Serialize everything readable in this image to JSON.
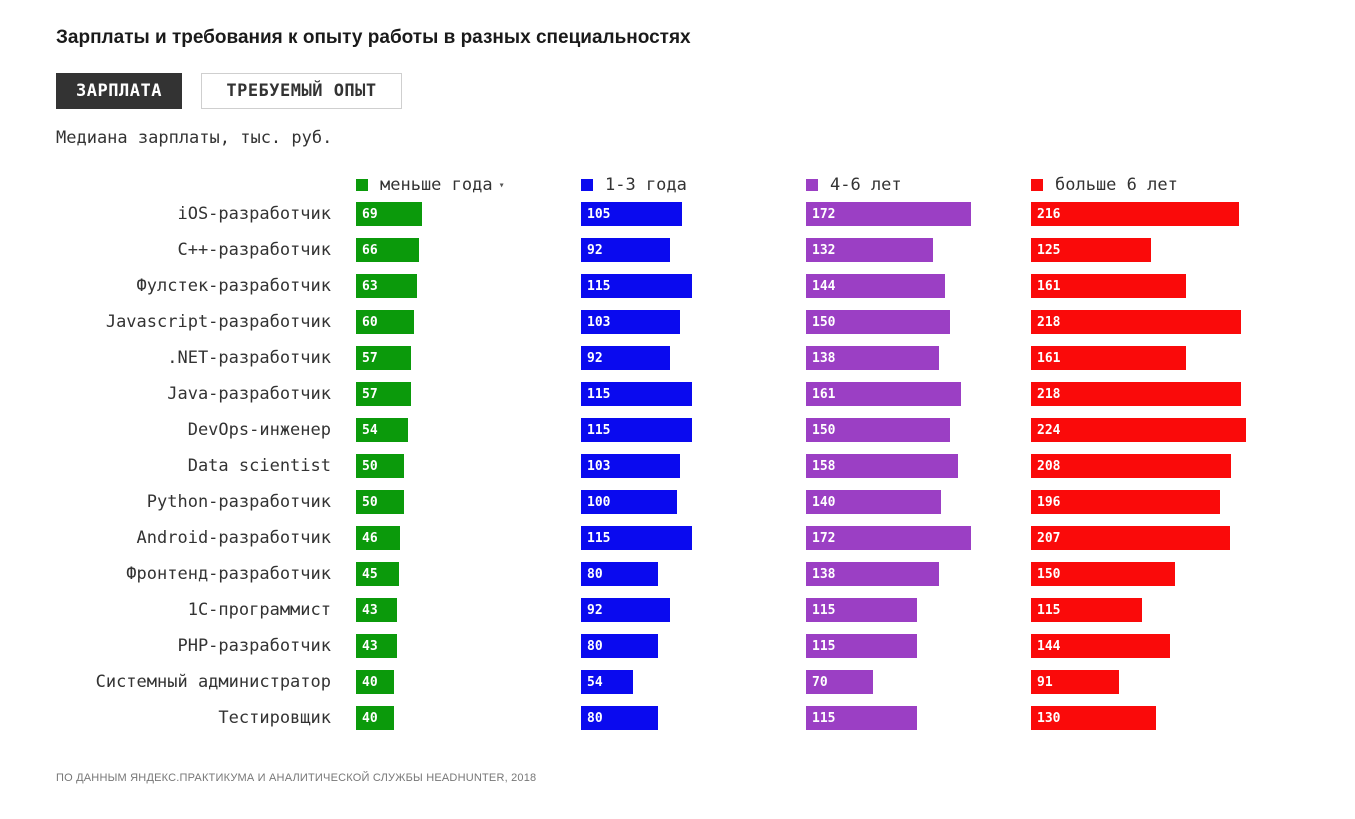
{
  "title": "Зарплаты и требования к опыту работы в разных специальностях",
  "tabs": {
    "active": "ЗАРПЛАТА",
    "inactive": "ТРЕБУЕМЫЙ ОПЫТ"
  },
  "subtitle": "Медиана зарплаты, тыс. руб.",
  "source": "ПО ДАННЫМ ЯНДЕКС.ПРАКТИКУМА И АНАЛИТИЧЕСКОЙ СЛУЖБЫ HEADHUNTER, 2018",
  "chart_data": {
    "type": "bar",
    "title": "Зарплаты и требования к опыту работы в разных специальностях",
    "ylabel": "Медиана зарплаты, тыс. руб.",
    "sort_indicator": "▾",
    "categories": [
      "iOS-разработчик",
      "C++-разработчик",
      "Фулстек-разработчик",
      "Javascript-разработчик",
      ".NET-разработчик",
      "Java-разработчик",
      "DevOps-инженер",
      "Data scientist",
      "Python-разработчик",
      "Android-разработчик",
      "Фронтенд-разработчик",
      "1С-программист",
      "PHP-разработчик",
      "Системный администратор",
      "Тестировщик"
    ],
    "series": [
      {
        "name": "меньше года",
        "color": "#0b9a0b",
        "values": [
          69,
          66,
          63,
          60,
          57,
          57,
          54,
          50,
          50,
          46,
          45,
          43,
          43,
          40,
          40
        ]
      },
      {
        "name": "1-3 года",
        "color": "#0a0aef",
        "values": [
          105,
          92,
          115,
          103,
          92,
          115,
          115,
          103,
          100,
          115,
          80,
          92,
          80,
          54,
          80
        ]
      },
      {
        "name": "4-6 лет",
        "color": "#9b3fc4",
        "values": [
          172,
          132,
          144,
          150,
          138,
          161,
          150,
          158,
          140,
          172,
          138,
          115,
          115,
          70,
          115
        ]
      },
      {
        "name": "больше 6 лет",
        "color": "#fa0a0a",
        "values": [
          216,
          125,
          161,
          218,
          161,
          218,
          224,
          208,
          196,
          207,
          150,
          115,
          144,
          91,
          130
        ]
      }
    ]
  }
}
